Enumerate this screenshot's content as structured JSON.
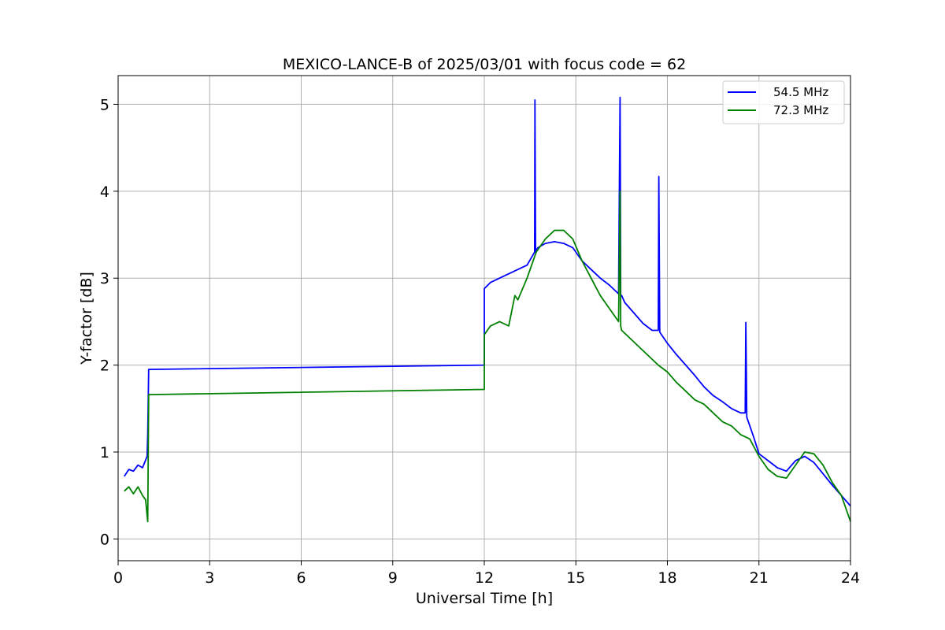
{
  "chart_data": {
    "type": "line",
    "title": "MEXICO-LANCE-B of 2025/03/01 with focus code = 62",
    "xlabel": "Universal Time [h]",
    "ylabel": "Y-factor [dB]",
    "xlim": [
      0,
      24
    ],
    "ylim": [
      -0.25,
      5.33
    ],
    "xticks": [
      0,
      3,
      6,
      9,
      12,
      15,
      18,
      21,
      24
    ],
    "yticks": [
      0,
      1,
      2,
      3,
      4,
      5
    ],
    "grid": true,
    "legend_position": "top-right",
    "series": [
      {
        "name": "54.5 MHz",
        "color": "#0000ff",
        "x": [
          0.2,
          0.35,
          0.5,
          0.65,
          0.8,
          0.95,
          0.97,
          1.0,
          12.0,
          12.0,
          12.2,
          12.5,
          12.8,
          13.1,
          13.4,
          13.65,
          13.66,
          13.68,
          13.75,
          14.0,
          14.3,
          14.6,
          14.9,
          15.2,
          15.5,
          15.8,
          16.1,
          16.4,
          16.45,
          16.47,
          16.5,
          16.6,
          16.9,
          17.2,
          17.5,
          17.7,
          17.72,
          17.75,
          18.0,
          18.3,
          18.6,
          18.9,
          19.2,
          19.5,
          19.8,
          20.1,
          20.4,
          20.55,
          20.57,
          20.6,
          20.8,
          21.0,
          21.3,
          21.6,
          21.9,
          22.2,
          22.5,
          22.8,
          23.1,
          23.4,
          23.7,
          24.0
        ],
        "y": [
          0.72,
          0.8,
          0.78,
          0.85,
          0.82,
          0.95,
          1.2,
          1.95,
          2.0,
          2.88,
          2.95,
          3.0,
          3.05,
          3.1,
          3.15,
          3.3,
          5.05,
          3.3,
          3.35,
          3.4,
          3.42,
          3.4,
          3.35,
          3.2,
          3.1,
          3.0,
          2.92,
          2.82,
          5.08,
          2.8,
          2.8,
          2.72,
          2.6,
          2.48,
          2.4,
          2.4,
          4.17,
          2.38,
          2.25,
          2.12,
          2.0,
          1.88,
          1.75,
          1.65,
          1.58,
          1.5,
          1.45,
          1.45,
          2.49,
          1.4,
          1.2,
          0.98,
          0.9,
          0.82,
          0.78,
          0.9,
          0.95,
          0.88,
          0.75,
          0.62,
          0.5,
          0.38
        ]
      },
      {
        "name": "72.3 MHz",
        "color": "#008000",
        "x": [
          0.2,
          0.35,
          0.5,
          0.65,
          0.8,
          0.9,
          0.97,
          1.0,
          12.0,
          12.0,
          12.2,
          12.5,
          12.8,
          13.0,
          13.1,
          13.4,
          13.7,
          14.0,
          14.3,
          14.6,
          14.9,
          15.2,
          15.5,
          15.8,
          16.1,
          16.4,
          16.45,
          16.47,
          16.5,
          16.8,
          17.1,
          17.4,
          17.7,
          18.0,
          18.3,
          18.6,
          18.9,
          19.2,
          19.5,
          19.8,
          20.1,
          20.4,
          20.7,
          21.0,
          21.3,
          21.6,
          21.9,
          22.2,
          22.5,
          22.8,
          23.1,
          23.4,
          23.7,
          24.0
        ],
        "y": [
          0.55,
          0.6,
          0.52,
          0.6,
          0.5,
          0.45,
          0.2,
          1.66,
          1.72,
          2.35,
          2.45,
          2.5,
          2.45,
          2.8,
          2.75,
          3.0,
          3.3,
          3.45,
          3.55,
          3.55,
          3.45,
          3.2,
          3.0,
          2.8,
          2.65,
          2.5,
          4.0,
          2.45,
          2.4,
          2.3,
          2.2,
          2.1,
          2.0,
          1.92,
          1.8,
          1.7,
          1.6,
          1.55,
          1.45,
          1.35,
          1.3,
          1.2,
          1.15,
          0.95,
          0.8,
          0.72,
          0.7,
          0.85,
          1.0,
          0.98,
          0.85,
          0.65,
          0.5,
          0.2
        ]
      }
    ]
  }
}
